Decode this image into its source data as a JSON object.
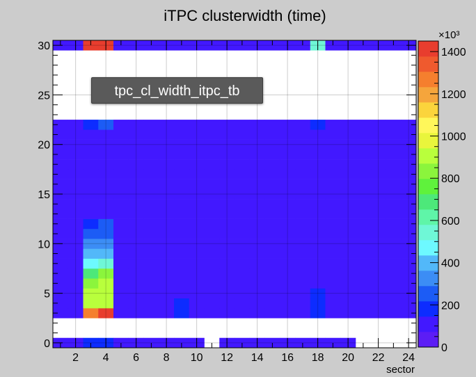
{
  "title": "iTPC clusterwidth (time)",
  "tooltip": "tpc_cl_width_itpc_tb",
  "colorbar_multiplier": "×10³",
  "colorbar_ticks": [
    "0",
    "200",
    "400",
    "600",
    "800",
    "1000",
    "1200",
    "1400"
  ],
  "palette": [
    "#5c1df5",
    "#4218ff",
    "#0d2cff",
    "#1c5cf5",
    "#3c8df5",
    "#52b8f9",
    "#6df9ff",
    "#6ff7d6",
    "#5ff5a8",
    "#4de87a",
    "#5ff23c",
    "#8bf53c",
    "#b9ff3c",
    "#e9f53c",
    "#fff75a",
    "#fbd43c",
    "#f5a53c",
    "#f57f2e",
    "#ef5a2e",
    "#e83d2e"
  ],
  "chart_data": {
    "type": "heatmap",
    "title": "iTPC clusterwidth (time)",
    "xlabel": "sector",
    "ylabel": "",
    "xlim": [
      0.5,
      24.5
    ],
    "ylim": [
      -0.5,
      30.5
    ],
    "x_ticks": [
      "2",
      "4",
      "6",
      "8",
      "10",
      "12",
      "14",
      "16",
      "18",
      "20",
      "22",
      "24"
    ],
    "y_ticks": [
      "0",
      "5",
      "10",
      "15",
      "20",
      "25",
      "30"
    ],
    "zlim": [
      0,
      1450000
    ],
    "z_ticks": [
      0,
      200000,
      400000,
      600000,
      800000,
      1000000,
      1200000,
      1400000
    ],
    "empty_y_bins": [
      1,
      2,
      23,
      24,
      25,
      26,
      27,
      28,
      29
    ],
    "baseline": 100000,
    "row_base": {
      "0": 100000,
      "15": 75000,
      "22": 85000
    },
    "missing": [
      [
        11,
        0
      ],
      [
        21,
        0
      ],
      [
        22,
        0
      ],
      [
        23,
        0
      ],
      [
        24,
        0
      ]
    ],
    "hot_cells": [
      {
        "x": 3,
        "y": 30,
        "z": 1400000
      },
      {
        "x": 4,
        "y": 30,
        "z": 1400000
      },
      {
        "x": 18,
        "y": 30,
        "z": 520000
      },
      {
        "x": 3,
        "y": 0,
        "z": 170000
      },
      {
        "x": 4,
        "y": 0,
        "z": 170000
      },
      {
        "x": 3,
        "y": 22,
        "z": 170000
      },
      {
        "x": 4,
        "y": 22,
        "z": 230000
      },
      {
        "x": 3,
        "y": 21,
        "z": 120000
      },
      {
        "x": 4,
        "y": 21,
        "z": 120000
      },
      {
        "x": 18,
        "y": 22,
        "z": 150000
      },
      {
        "x": 3,
        "y": 3,
        "z": 1250000
      },
      {
        "x": 4,
        "y": 3,
        "z": 1380000
      },
      {
        "x": 3,
        "y": 4,
        "z": 920000
      },
      {
        "x": 4,
        "y": 4,
        "z": 920000
      },
      {
        "x": 3,
        "y": 5,
        "z": 930000
      },
      {
        "x": 4,
        "y": 5,
        "z": 930000
      },
      {
        "x": 3,
        "y": 6,
        "z": 830000
      },
      {
        "x": 4,
        "y": 6,
        "z": 930000
      },
      {
        "x": 3,
        "y": 7,
        "z": 700000
      },
      {
        "x": 4,
        "y": 7,
        "z": 830000
      },
      {
        "x": 3,
        "y": 8,
        "z": 470000
      },
      {
        "x": 4,
        "y": 8,
        "z": 560000
      },
      {
        "x": 3,
        "y": 9,
        "z": 380000
      },
      {
        "x": 4,
        "y": 9,
        "z": 400000
      },
      {
        "x": 3,
        "y": 10,
        "z": 300000
      },
      {
        "x": 4,
        "y": 10,
        "z": 360000
      },
      {
        "x": 3,
        "y": 11,
        "z": 240000
      },
      {
        "x": 4,
        "y": 11,
        "z": 280000
      },
      {
        "x": 3,
        "y": 12,
        "z": 200000
      },
      {
        "x": 4,
        "y": 12,
        "z": 260000
      },
      {
        "x": 3,
        "y": 13,
        "z": 140000
      },
      {
        "x": 4,
        "y": 13,
        "z": 140000
      },
      {
        "x": 3,
        "y": 14,
        "z": 120000
      },
      {
        "x": 4,
        "y": 14,
        "z": 120000
      },
      {
        "x": 9,
        "y": 3,
        "z": 200000
      },
      {
        "x": 9,
        "y": 4,
        "z": 150000
      },
      {
        "x": 9,
        "y": 5,
        "z": 130000
      },
      {
        "x": 9,
        "y": 6,
        "z": 130000
      },
      {
        "x": 9,
        "y": 7,
        "z": 120000
      },
      {
        "x": 18,
        "y": 3,
        "z": 150000
      },
      {
        "x": 18,
        "y": 4,
        "z": 150000
      },
      {
        "x": 18,
        "y": 5,
        "z": 150000
      },
      {
        "x": 18,
        "y": 6,
        "z": 140000
      },
      {
        "x": 18,
        "y": 7,
        "z": 140000
      },
      {
        "x": 18,
        "y": 8,
        "z": 140000
      },
      {
        "x": 18,
        "y": 9,
        "z": 140000
      },
      {
        "x": 18,
        "y": 10,
        "z": 140000
      },
      {
        "x": 18,
        "y": 11,
        "z": 130000
      },
      {
        "x": 18,
        "y": 12,
        "z": 130000
      }
    ]
  }
}
